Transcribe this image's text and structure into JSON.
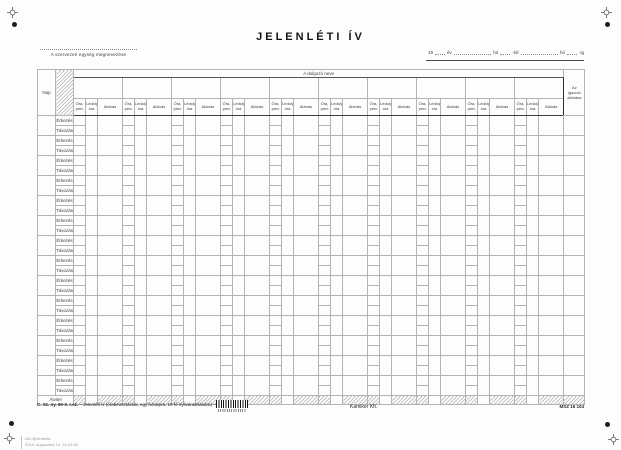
{
  "page": {
    "title": "JELENLÉTI ÍV",
    "unit_label": "A szervezeti egység megnevezése",
    "date": {
      "year_prefix": "19",
      "year_label": "év",
      "month_label": "hó",
      "from_suffix": "-tól",
      "month_label2": "hó",
      "to_suffix": "-ig"
    }
  },
  "table": {
    "day_header": "Nap",
    "employee_header": "A dolgozó neve",
    "sub_headers": [
      "Óra, perc",
      "Ledolg. óra",
      "Aláírás"
    ],
    "verifier_header": "Az igazoló aláírása",
    "arrival_label": "Érkezés",
    "departure_label": "Távozás",
    "carry_label": "Átvitel",
    "days": 14,
    "groups": 10
  },
  "footer": {
    "form_code": "C. Sz. ny. 60-3. r.sz.",
    "form_title": "– Jelenléti ív (órabeosztással, egy hónapra, 10 fő nyilvántartására) –",
    "printer": "Kamiker Kft.",
    "standard": "MSZ 16 104"
  },
  "print_info": {
    "line1": "r60-3jelenletiiv",
    "line2": "2014. augusztus 14.  14:20:36"
  }
}
